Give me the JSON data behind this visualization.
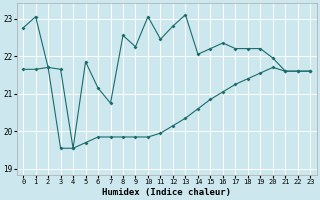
{
  "xlabel": "Humidex (Indice chaleur)",
  "bg_color": "#cce8ee",
  "line_color": "#1a6b6b",
  "grid_color": "#ffffff",
  "xlim": [
    -0.5,
    23.5
  ],
  "ylim": [
    18.85,
    23.4
  ],
  "yticks": [
    19,
    20,
    21,
    22,
    23
  ],
  "xticks": [
    0,
    1,
    2,
    3,
    4,
    5,
    6,
    7,
    8,
    9,
    10,
    11,
    12,
    13,
    14,
    15,
    16,
    17,
    18,
    19,
    20,
    21,
    22,
    23
  ],
  "upper_x": [
    0,
    1,
    2,
    3,
    4,
    5,
    6,
    7,
    8,
    9,
    10,
    11,
    12,
    13,
    14,
    15,
    16,
    17,
    18,
    19,
    20,
    21,
    22,
    23
  ],
  "upper_y": [
    22.75,
    23.05,
    21.7,
    21.65,
    19.55,
    21.85,
    21.15,
    20.75,
    22.55,
    22.25,
    23.05,
    22.45,
    22.8,
    23.1,
    22.05,
    22.2,
    22.35,
    22.2,
    22.2,
    22.2,
    21.95,
    21.6,
    21.6,
    21.6
  ],
  "lower_x": [
    0,
    1,
    2,
    3,
    4,
    5,
    6,
    7,
    8,
    9,
    10,
    11,
    12,
    13,
    14,
    15,
    16,
    17,
    18,
    19,
    20,
    21,
    22,
    23
  ],
  "lower_y": [
    21.65,
    21.65,
    21.7,
    19.55,
    19.55,
    19.7,
    19.85,
    19.85,
    19.85,
    19.85,
    19.85,
    19.95,
    20.15,
    20.35,
    20.6,
    20.85,
    21.05,
    21.25,
    21.4,
    21.55,
    21.7,
    21.6,
    21.6,
    21.6
  ]
}
